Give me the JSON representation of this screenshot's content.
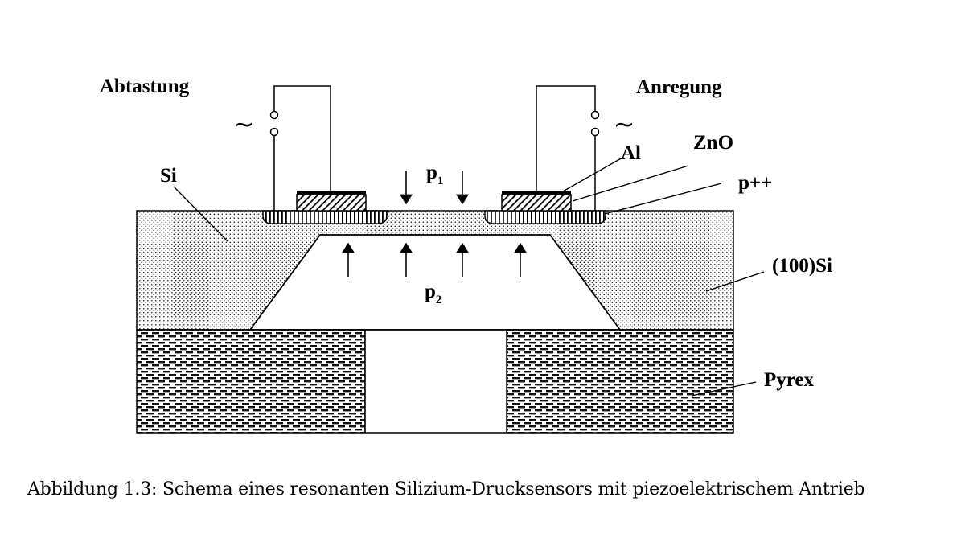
{
  "labels": {
    "left_circuit": "Abtastung",
    "right_circuit": "Anregung",
    "si": "Si",
    "al": "Al",
    "zno": "ZnO",
    "p_doped": "p++",
    "si_100": "(100)Si",
    "pyrex": "Pyrex",
    "p1_main": "p",
    "p1_sub": "1",
    "p2_main": "p",
    "p2_sub": "2",
    "ac_symbol": "~"
  },
  "caption": "Abbildung 1.3: Schema eines resonanten Silizium-Drucksensors mit piezoelektrischem Antrieb"
}
